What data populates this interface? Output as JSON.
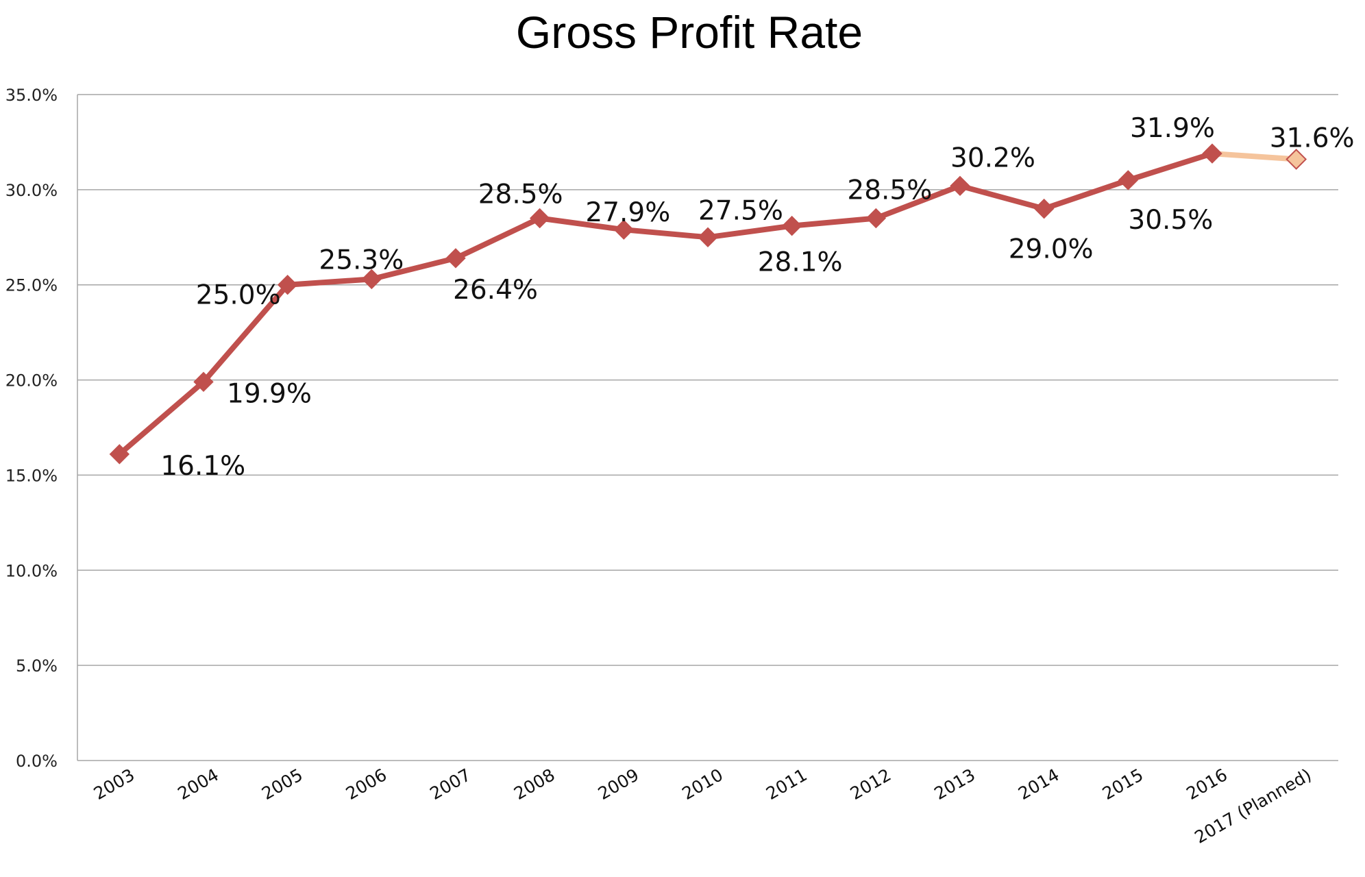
{
  "chart_data": {
    "type": "line",
    "title": "Gross Profit Rate",
    "xlabel": "",
    "ylabel": "",
    "categories": [
      "2003",
      "2004",
      "2005",
      "2006",
      "2007",
      "2008",
      "2009",
      "2010",
      "2011",
      "2012",
      "2013",
      "2014",
      "2015",
      "2016",
      "2017 (Planned)"
    ],
    "values": [
      16.1,
      19.9,
      25.0,
      25.3,
      26.4,
      28.5,
      27.9,
      27.5,
      28.1,
      28.5,
      30.2,
      29.0,
      30.5,
      31.9,
      31.6
    ],
    "value_labels": [
      "16.1%",
      "19.9%",
      "25.0%",
      "25.3%",
      "26.4%",
      "28.5%",
      "27.9%",
      "27.5%",
      "28.1%",
      "28.5%",
      "30.2%",
      "29.0%",
      "30.5%",
      "31.9%",
      "31.6%"
    ],
    "yticks": [
      "0.0%",
      "5.0%",
      "10.0%",
      "15.0%",
      "20.0%",
      "25.0%",
      "30.0%",
      "35.0%"
    ],
    "ylim": [
      0,
      35
    ],
    "grid": true,
    "legend": "none",
    "colors": {
      "line": "#c0504d",
      "marker": "#c0504d",
      "planned_line": "#f5c49c",
      "planned_marker_fill": "#f5c49c",
      "planned_marker_stroke": "#c0504d",
      "grid": "#a6a6a6"
    }
  }
}
